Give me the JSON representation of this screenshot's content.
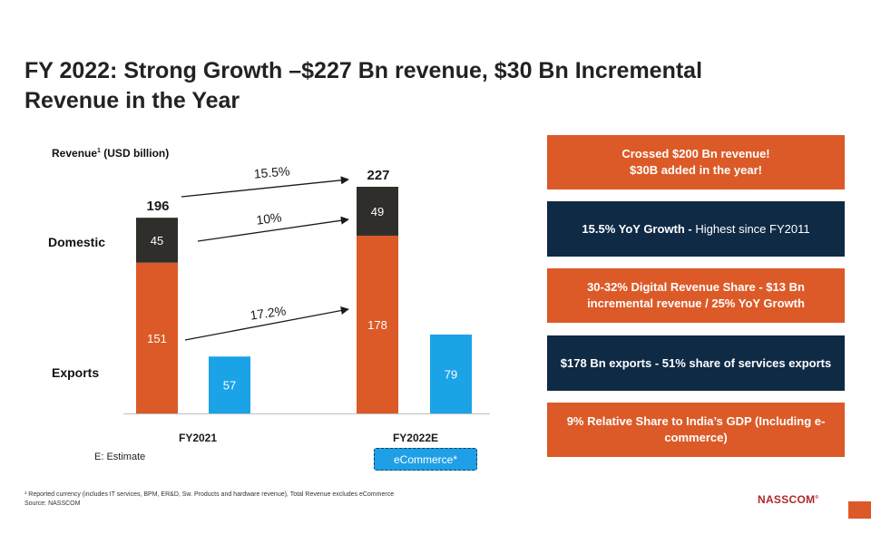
{
  "title_line1": "FY 2022: Strong Growth –$227 Bn revenue, $30 Bn Incremental",
  "title_line2": "Revenue in the Year",
  "revenue_label": "Revenue",
  "revenue_sup": "1",
  "revenue_unit": " (USD billion)",
  "row_labels": {
    "domestic": "Domestic",
    "exports": "Exports"
  },
  "estimate_note": "E: Estimate",
  "ecommerce_badge": "eCommerce*",
  "panels": [
    {
      "bold": "Crossed $200 Bn revenue!\n$30B added in the year!",
      "normal": "",
      "color": "#dc5a27"
    },
    {
      "bold": "15.5% YoY Growth - ",
      "normal": "Highest since FY2011",
      "color": "#0f2a45"
    },
    {
      "bold": "30-32% Digital Revenue Share - $13 Bn incremental revenue / 25% YoY Growth",
      "normal": "",
      "color": "#dc5a27"
    },
    {
      "bold": "$178 Bn exports  - 51% share of services exports",
      "normal": "",
      "color": "#0f2a45"
    },
    {
      "bold": "9%  Relative Share to India’s GDP (Including e-commerce)",
      "normal": "",
      "color": "#dc5a27"
    }
  ],
  "footnote_line1": "¹ Reported currency (includes IT services, BPM, ER&D, Sw. Products and hardware revenue), Total Revenue excludes eCommerce",
  "footnote_line2": "Source: NASSCOM",
  "logo": "NASSCOM",
  "logo_mark": "®",
  "chart_data": {
    "type": "bar",
    "categories": [
      "FY2021",
      "FY2022E"
    ],
    "stacked_series": [
      {
        "name": "Exports",
        "values": [
          151,
          178
        ],
        "color": "#dc5a27"
      },
      {
        "name": "Domestic",
        "values": [
          45,
          49
        ],
        "color": "#2f2e2a"
      }
    ],
    "totals": [
      196,
      227
    ],
    "ecommerce": {
      "name": "eCommerce*",
      "values": [
        57,
        79
      ],
      "color": "#1ba3e8"
    },
    "growth_annotations": [
      {
        "label": "15.5%",
        "applies_to": "Total"
      },
      {
        "label": "10%",
        "applies_to": "Domestic"
      },
      {
        "label": "17.2%",
        "applies_to": "Exports"
      }
    ],
    "ylim": [
      0,
      227
    ],
    "grid": false
  }
}
